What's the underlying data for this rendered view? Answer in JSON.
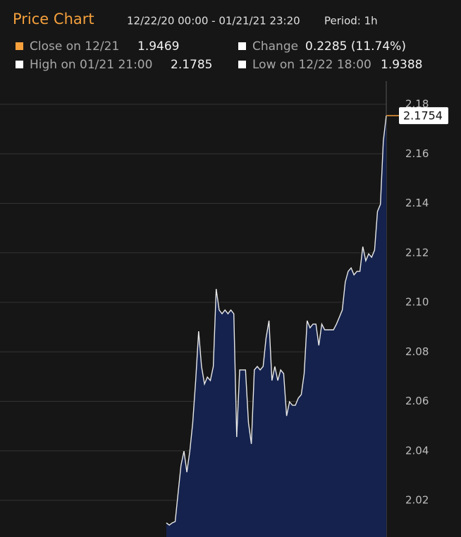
{
  "chart_data": {
    "type": "area",
    "title": "Price Chart",
    "subtitle": "12/22/20 00:00 - 01/21/21 23:20",
    "period": "Period: 1h",
    "stats": [
      {
        "label": "Close on 12/21",
        "value": "1.9469",
        "color": "#f5a03c"
      },
      {
        "label": "Change",
        "value": "0.2285 (11.74%)",
        "color": "#ffffff"
      },
      {
        "label": "High on 01/21 21:00",
        "value": "2.1785",
        "color": "#ffffff"
      },
      {
        "label": "Low on 12/22 18:00",
        "value": "1.9388",
        "color": "#ffffff"
      }
    ],
    "series": [
      {
        "color": "#e8e8e8",
        "fill": "#14224d",
        "marker_color": "#f5a03c",
        "values": [
          2.0109,
          2.01,
          2.0109,
          2.0114,
          2.0228,
          2.0342,
          2.0399,
          2.0314,
          2.0399,
          2.0513,
          2.0684,
          2.0883,
          2.0741,
          2.067,
          2.0698,
          2.0684,
          2.0741,
          2.1054,
          2.0969,
          2.0954,
          2.0969,
          2.0954,
          2.0969,
          2.0954,
          2.0456,
          2.0727,
          2.0727,
          2.0727,
          2.0513,
          2.0428,
          2.0727,
          2.0741,
          2.0727,
          2.0741,
          2.0855,
          2.0926,
          2.0684,
          2.0741,
          2.0684,
          2.0727,
          2.0712,
          2.0541,
          2.0598,
          2.0584,
          2.0584,
          2.0613,
          2.0627,
          2.0712,
          2.0926,
          2.0897,
          2.0912,
          2.0912,
          2.0826,
          2.0912,
          2.0889,
          2.0889,
          2.0889,
          2.0889,
          2.0912,
          2.094,
          2.0969,
          2.1082,
          2.1125,
          2.1139,
          2.1111,
          2.1125,
          2.1125,
          2.1225,
          2.1168,
          2.1196,
          2.1182,
          2.1211,
          2.1367,
          2.1396,
          2.1652,
          2.1754
        ]
      }
    ],
    "ylim": [
      2.0052,
      2.1894
    ],
    "yticks": [
      2.02,
      2.04,
      2.06,
      2.08,
      {
        "value": 2.1,
        "label": "2.10"
      },
      2.12,
      2.14,
      2.16,
      2.18
    ],
    "grid": true
  }
}
